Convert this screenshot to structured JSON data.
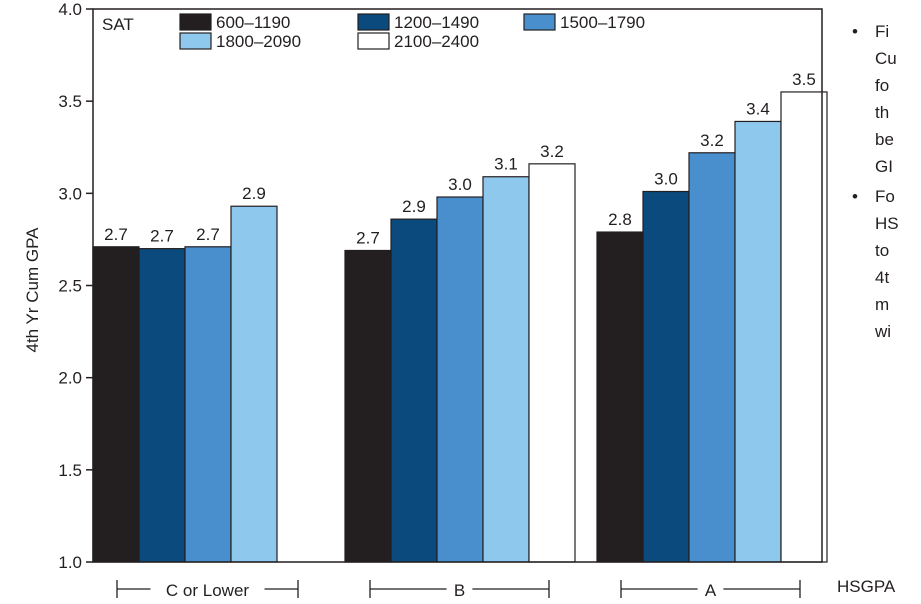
{
  "chart_data": {
    "type": "bar",
    "ylabel": "4th Yr Cum GPA",
    "xlabel": "HSGPA",
    "ylim": [
      1.0,
      4.0
    ],
    "yticks": [
      "1.0",
      "1.5",
      "2.0",
      "2.5",
      "3.0",
      "3.5",
      "4.0"
    ],
    "legend_title": "SAT",
    "legend_position": "top-left",
    "grid": false,
    "categories": [
      "C or Lower",
      "B",
      "A"
    ],
    "series": [
      {
        "name": "600–1190",
        "color": "#231f20",
        "values": [
          2.71,
          2.69,
          2.79
        ],
        "labels": [
          "2.7",
          "2.7",
          "2.8"
        ]
      },
      {
        "name": "1200–1490",
        "color": "#0a4a7c",
        "values": [
          2.7,
          2.86,
          3.01
        ],
        "labels": [
          "2.7",
          "2.9",
          "3.0"
        ]
      },
      {
        "name": "1500–1790",
        "color": "#4a8fcd",
        "values": [
          2.71,
          2.98,
          3.22
        ],
        "labels": [
          "2.7",
          "3.0",
          "3.2"
        ]
      },
      {
        "name": "1800–2090",
        "color": "#8ec8ec",
        "values": [
          2.93,
          3.09,
          3.39
        ],
        "labels": [
          "2.9",
          "3.1",
          "3.4"
        ]
      },
      {
        "name": "2100–2400",
        "color": "#ffffff",
        "values": [
          null,
          3.16,
          3.55
        ],
        "labels": [
          null,
          "3.2",
          "3.5"
        ]
      }
    ]
  },
  "notes": [
    {
      "lines": [
        "Fi",
        "Cu",
        "fo",
        "th",
        "be",
        "GI"
      ]
    },
    {
      "lines": [
        "Fo",
        "HS",
        "to",
        "4t",
        "m",
        "wi"
      ]
    }
  ]
}
